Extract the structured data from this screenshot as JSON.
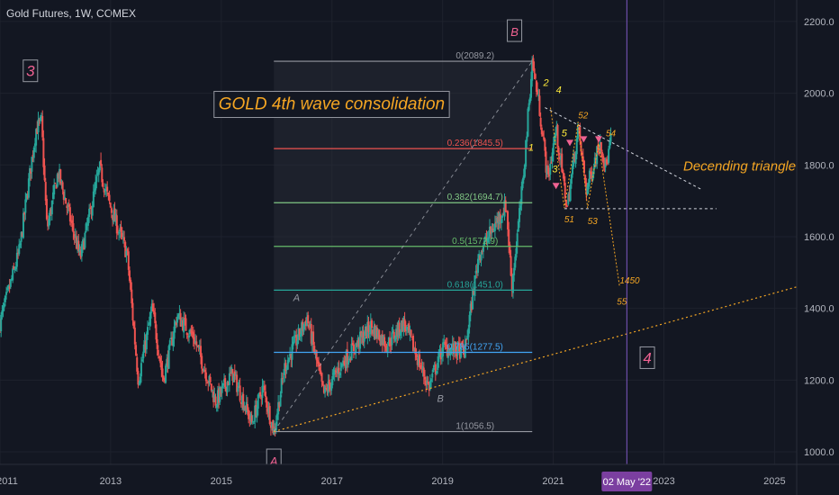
{
  "header": {
    "symbol_title": "Gold Futures, 1W, COMEX"
  },
  "colors": {
    "background": "#131722",
    "candle_up": "#26a69a",
    "candle_down": "#ef5350",
    "fib_box": "#2a2e39",
    "fib_border": "#9598a1",
    "orange": "#f5a623",
    "wave_pink": "#f06292",
    "vline": "#7e57c2",
    "grid": "#1e222d",
    "axis_text": "#b2b5be"
  },
  "chart_data": {
    "type": "candlestick",
    "title": "GOLD 4th wave consolidation",
    "x_axis": {
      "ticks": [
        "2011",
        "2013",
        "2015",
        "2017",
        "2019",
        "2021",
        "2023",
        "2025"
      ],
      "tick_values": [
        2011,
        2013,
        2015,
        2017,
        2019,
        2021,
        2023,
        2025
      ],
      "range": [
        2011,
        2025.4
      ],
      "highlight_label": "02 May '22",
      "highlight_value": 2022.33
    },
    "y_axis": {
      "ticks": [
        "1000.0",
        "1200.0",
        "1400.0",
        "1600.0",
        "1800.0",
        "2000.0",
        "2200.0"
      ],
      "tick_values": [
        1000,
        1200,
        1400,
        1600,
        1800,
        2000,
        2200
      ],
      "range": [
        965,
        2260
      ]
    },
    "price_path": [
      [
        2011.0,
        1360
      ],
      [
        2011.35,
        1560
      ],
      [
        2011.65,
        1900
      ],
      [
        2011.75,
        1920
      ],
      [
        2011.85,
        1620
      ],
      [
        2012.05,
        1780
      ],
      [
        2012.45,
        1540
      ],
      [
        2012.8,
        1790
      ],
      [
        2013.0,
        1680
      ],
      [
        2013.3,
        1550
      ],
      [
        2013.5,
        1200
      ],
      [
        2013.75,
        1400
      ],
      [
        2013.95,
        1200
      ],
      [
        2014.2,
        1380
      ],
      [
        2014.5,
        1320
      ],
      [
        2014.9,
        1140
      ],
      [
        2015.2,
        1220
      ],
      [
        2015.55,
        1080
      ],
      [
        2015.75,
        1180
      ],
      [
        2015.95,
        1056.5
      ],
      [
        2016.15,
        1240
      ],
      [
        2016.55,
        1375
      ],
      [
        2016.85,
        1160
      ],
      [
        2017.2,
        1250
      ],
      [
        2017.7,
        1350
      ],
      [
        2018.0,
        1300
      ],
      [
        2018.3,
        1360
      ],
      [
        2018.75,
        1180
      ],
      [
        2019.0,
        1290
      ],
      [
        2019.4,
        1280
      ],
      [
        2019.65,
        1550
      ],
      [
        2020.15,
        1690
      ],
      [
        2020.25,
        1460
      ],
      [
        2020.45,
        1750
      ],
      [
        2020.62,
        2089.2
      ],
      [
        2020.75,
        1960
      ],
      [
        2020.9,
        1760
      ],
      [
        2021.05,
        1900
      ],
      [
        2021.25,
        1680
      ],
      [
        2021.45,
        1900
      ],
      [
        2021.6,
        1730
      ],
      [
        2021.85,
        1870
      ],
      [
        2021.95,
        1790
      ],
      [
        2022.05,
        1880
      ]
    ],
    "fibonacci": [
      {
        "label": "0(2089.2)",
        "value": 2089.2,
        "color": "#9598a1"
      },
      {
        "label": "0.236(1845.5)",
        "value": 1845.5,
        "color": "#ef5350"
      },
      {
        "label": "0.382(1694.7)",
        "value": 1694.7,
        "color": "#81c784"
      },
      {
        "label": "0.5(1572.9)",
        "value": 1572.9,
        "color": "#66bb6a"
      },
      {
        "label": "0.618(1451.0)",
        "value": 1451.0,
        "color": "#26a69a"
      },
      {
        "label": "0.786(1277.5)",
        "value": 1277.5,
        "color": "#42a5f5"
      },
      {
        "label": "1(1056.5)",
        "value": 1056.5,
        "color": "#9598a1"
      }
    ],
    "fib_x_range": [
      2015.95,
      2020.62
    ],
    "boxed_labels": [
      {
        "text": "3",
        "x": 2011.55,
        "y": 2060,
        "color": "#f06292"
      },
      {
        "text": "B",
        "x": 2020.3,
        "y": 2172,
        "color": "#f06292"
      },
      {
        "text": "A",
        "x": 2015.95,
        "y": 975,
        "color": "#f06292"
      },
      {
        "text": "4",
        "x": 2022.7,
        "y": 1260,
        "color": "#f06292"
      }
    ],
    "annotations": [
      {
        "text": "GOLD 4th wave consolidation",
        "x": 2014.95,
        "y": 1955,
        "color": "#f5a623",
        "size": 19,
        "boxed": true
      },
      {
        "text": "Decending triangle",
        "x": 2023.35,
        "y": 1785,
        "color": "#f5a623",
        "size": 15
      },
      {
        "text": "A",
        "x": 2016.3,
        "y": 1420,
        "color": "#9598a1",
        "size": 11
      },
      {
        "text": "B",
        "x": 2018.9,
        "y": 1140,
        "color": "#9598a1",
        "size": 11
      },
      {
        "text": "1",
        "x": 2020.55,
        "y": 1840,
        "color": "#ffeb3b",
        "size": 11
      },
      {
        "text": "2",
        "x": 2020.82,
        "y": 2020,
        "color": "#ffeb3b",
        "size": 11
      },
      {
        "text": "3",
        "x": 2020.98,
        "y": 1780,
        "color": "#ffeb3b",
        "size": 11
      },
      {
        "text": "4",
        "x": 2021.05,
        "y": 2000,
        "color": "#ffeb3b",
        "size": 11
      },
      {
        "text": "5",
        "x": 2021.15,
        "y": 1880,
        "color": "#ffeb3b",
        "size": 11
      },
      {
        "text": "52",
        "x": 2021.45,
        "y": 1930,
        "color": "#f5a623",
        "size": 10
      },
      {
        "text": "54",
        "x": 2021.95,
        "y": 1880,
        "color": "#f5a623",
        "size": 10
      },
      {
        "text": "51",
        "x": 2021.2,
        "y": 1640,
        "color": "#f5a623",
        "size": 10
      },
      {
        "text": "53",
        "x": 2021.62,
        "y": 1635,
        "color": "#f5a623",
        "size": 10
      },
      {
        "text": "1450",
        "x": 2022.2,
        "y": 1470,
        "color": "#f5a623",
        "size": 10
      },
      {
        "text": "55",
        "x": 2022.15,
        "y": 1410,
        "color": "#f5a623",
        "size": 10
      }
    ]
  }
}
